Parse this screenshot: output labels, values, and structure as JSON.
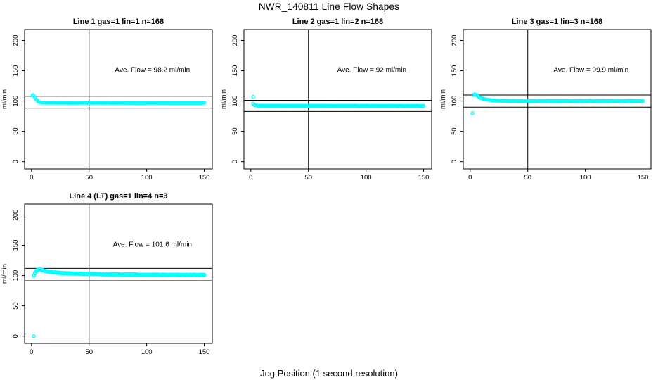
{
  "figure": {
    "main_title": "NWR_140811  Line Flow Shapes",
    "xlabel": "Jog Position (1 second resolution)",
    "colors": {
      "points": "#00FFFF",
      "axis": "#000000",
      "background": "#FFFFFF"
    }
  },
  "chart_data": [
    {
      "type": "scatter",
      "title": "Line 1 gas=1 lin=1 n=168",
      "ylabel": "ml/min",
      "annotation": "Ave. Flow =  98.2  ml/min",
      "ave_flow": 98.2,
      "xlim": [
        -6,
        157
      ],
      "ylim": [
        -12,
        218
      ],
      "xticks": [
        0,
        50,
        100,
        150
      ],
      "yticks": [
        0,
        50,
        100,
        150,
        200
      ],
      "vline_x": 50,
      "hlines": [
        108.0,
        88.4
      ],
      "annotation_pos": [
        105,
        148
      ],
      "x_start": 1,
      "x_end": 150,
      "jitter": 0.3,
      "passes": 1,
      "points_breakpoints": [
        [
          1,
          110
        ],
        [
          2,
          108.5
        ],
        [
          3,
          105.5
        ],
        [
          4,
          102.5
        ],
        [
          5,
          100.5
        ],
        [
          6,
          99
        ],
        [
          8,
          97.8
        ],
        [
          12,
          97.2
        ],
        [
          150,
          97
        ]
      ],
      "extra_points": []
    },
    {
      "type": "scatter",
      "title": "Line 2 gas=1 lin=2 n=168",
      "ylabel": "ml/min",
      "annotation": "Ave. Flow =  92  ml/min",
      "ave_flow": 92,
      "xlim": [
        -6,
        157
      ],
      "ylim": [
        -12,
        218
      ],
      "xticks": [
        0,
        50,
        100,
        150
      ],
      "yticks": [
        0,
        50,
        100,
        150,
        200
      ],
      "vline_x": 50,
      "hlines": [
        101.2,
        82.8
      ],
      "annotation_pos": [
        105,
        148
      ],
      "x_start": 2,
      "x_end": 150,
      "jitter": 0.3,
      "passes": 1,
      "points_breakpoints": [
        [
          2,
          95.5
        ],
        [
          3,
          93.5
        ],
        [
          4,
          92.8
        ],
        [
          6,
          92.3
        ],
        [
          150,
          92
        ]
      ],
      "extra_points": [
        [
          2,
          107
        ]
      ]
    },
    {
      "type": "scatter",
      "title": "Line 3 gas=1 lin=3 n=168",
      "ylabel": "ml/min",
      "annotation": "Ave. Flow =  99.9  ml/min",
      "ave_flow": 99.9,
      "xlim": [
        -6,
        157
      ],
      "ylim": [
        -12,
        218
      ],
      "xticks": [
        0,
        50,
        100,
        150
      ],
      "yticks": [
        0,
        50,
        100,
        150,
        200
      ],
      "vline_x": 50,
      "hlines": [
        109.9,
        89.9
      ],
      "annotation_pos": [
        105,
        148
      ],
      "x_start": 3,
      "x_end": 150,
      "jitter": 0.5,
      "passes": 1,
      "points_breakpoints": [
        [
          3,
          110
        ],
        [
          4,
          111
        ],
        [
          5,
          110.5
        ],
        [
          6,
          109
        ],
        [
          8,
          106.5
        ],
        [
          10,
          104.5
        ],
        [
          13,
          103
        ],
        [
          16,
          102
        ],
        [
          20,
          101
        ],
        [
          28,
          100.3
        ],
        [
          40,
          100
        ],
        [
          150,
          100
        ]
      ],
      "extra_points": [
        [
          2,
          80
        ]
      ]
    },
    {
      "type": "scatter",
      "title": "Line 4 (LT) gas=1 lin=4 n=3",
      "ylabel": "ml/min",
      "annotation": "Ave. Flow =  101.6  ml/min",
      "ave_flow": 101.6,
      "xlim": [
        -6,
        157
      ],
      "ylim": [
        -12,
        218
      ],
      "xticks": [
        0,
        50,
        100,
        150
      ],
      "yticks": [
        0,
        50,
        100,
        150,
        200
      ],
      "vline_x": 50,
      "hlines": [
        111.8,
        91.4
      ],
      "annotation_pos": [
        105,
        148
      ],
      "x_start": 2,
      "x_end": 150,
      "jitter": 1.1,
      "passes": 3,
      "points_breakpoints": [
        [
          2,
          100
        ],
        [
          3,
          104
        ],
        [
          4,
          107
        ],
        [
          5,
          109
        ],
        [
          6,
          110
        ],
        [
          8,
          109.5
        ],
        [
          10,
          108.5
        ],
        [
          13,
          107
        ],
        [
          16,
          106
        ],
        [
          20,
          105.2
        ],
        [
          25,
          104.4
        ],
        [
          30,
          103.8
        ],
        [
          40,
          103.1
        ],
        [
          50,
          102.6
        ],
        [
          60,
          102.3
        ],
        [
          80,
          101.8
        ],
        [
          100,
          101.4
        ],
        [
          120,
          101.2
        ],
        [
          150,
          101
        ]
      ],
      "extra_points": [
        [
          2,
          0
        ]
      ]
    }
  ]
}
